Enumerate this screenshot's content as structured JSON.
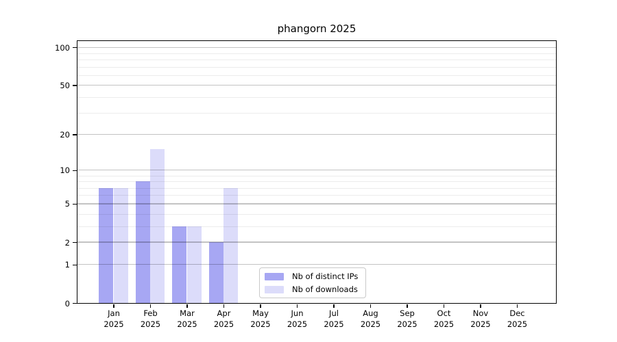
{
  "chart_data": {
    "type": "bar",
    "title": "phangorn 2025",
    "xlabel": "",
    "ylabel": "",
    "categories": [
      "Jan 2025",
      "Feb 2025",
      "Mar 2025",
      "Apr 2025",
      "May 2025",
      "Jun 2025",
      "Jul 2025",
      "Aug 2025",
      "Sep 2025",
      "Oct 2025",
      "Nov 2025",
      "Dec 2025"
    ],
    "series": [
      {
        "name": "Nb of distinct IPs",
        "color": "#a7a7f3",
        "values": [
          7,
          8,
          3,
          2,
          0,
          0,
          0,
          0,
          0,
          0,
          0,
          0
        ]
      },
      {
        "name": "Nb of downloads",
        "color": "#dcdcfa",
        "values": [
          7,
          15,
          3,
          7,
          0,
          0,
          0,
          0,
          0,
          0,
          0,
          0
        ]
      }
    ],
    "y_scale": "log10(1+x)",
    "y_ticks": [
      0,
      1,
      2,
      5,
      10,
      20,
      50,
      100
    ],
    "y_minor_ticks": [
      3,
      4,
      6,
      7,
      8,
      9,
      30,
      40,
      60,
      70,
      80,
      90
    ],
    "ylim": [
      0,
      112
    ],
    "grid": "on",
    "grid_over_bars": true,
    "legend_position": "inside-bottom-center"
  }
}
